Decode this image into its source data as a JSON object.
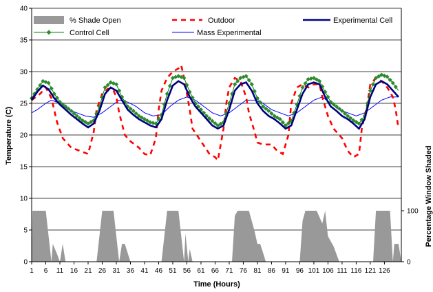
{
  "chart_data": {
    "type": "line",
    "xlabel": "Time (Hours)",
    "ylabel": "Temperature (C)",
    "y2label": "Percentage Window Shaded",
    "ylim": [
      0,
      40
    ],
    "y_ticks": [
      0,
      5,
      10,
      15,
      20,
      25,
      30,
      35,
      40
    ],
    "y2lim": [
      0,
      100
    ],
    "y2_ticks": [
      0,
      100
    ],
    "xlim": [
      1,
      132
    ],
    "x_ticks": [
      1,
      6,
      11,
      16,
      21,
      26,
      31,
      36,
      41,
      46,
      51,
      56,
      61,
      66,
      71,
      76,
      81,
      86,
      91,
      96,
      101,
      106,
      111,
      116,
      121,
      126
    ],
    "grid": "horizontal",
    "legend_position": "top",
    "colors": {
      "shade": "#999999",
      "outdoor": "#ff0000",
      "experimental": "#000080",
      "control": "#008000",
      "control_marker": "#2e8b2e",
      "mass": "#0000ff"
    },
    "legend": [
      {
        "key": "shade",
        "label": "% Shade Open"
      },
      {
        "key": "outdoor",
        "label": "Outdoor"
      },
      {
        "key": "experimental",
        "label": "Experimental Cell"
      },
      {
        "key": "control",
        "label": "Control Cell"
      },
      {
        "key": "mass",
        "label": "Mass Experimental"
      }
    ],
    "series": [
      {
        "key": "outdoor",
        "name": "Outdoor",
        "points": [
          [
            1,
            25.5
          ],
          [
            4,
            26.5
          ],
          [
            6,
            27.5
          ],
          [
            8,
            25.8
          ],
          [
            10,
            22
          ],
          [
            12,
            19.5
          ],
          [
            15,
            18
          ],
          [
            18,
            17.5
          ],
          [
            21,
            17
          ],
          [
            23,
            20.5
          ],
          [
            24,
            24
          ],
          [
            26,
            26.5
          ],
          [
            28,
            27.3
          ],
          [
            30,
            27
          ],
          [
            31,
            26
          ],
          [
            32,
            23.5
          ],
          [
            34,
            20
          ],
          [
            36,
            19
          ],
          [
            39,
            18
          ],
          [
            41,
            17
          ],
          [
            43,
            16.8
          ],
          [
            45,
            19.5
          ],
          [
            46,
            24
          ],
          [
            47,
            27
          ],
          [
            49,
            29
          ],
          [
            51,
            30
          ],
          [
            53,
            30.5
          ],
          [
            54,
            31
          ],
          [
            55,
            29
          ],
          [
            57,
            24
          ],
          [
            58,
            21
          ],
          [
            61,
            19
          ],
          [
            64,
            17
          ],
          [
            66,
            16.5
          ],
          [
            67,
            16
          ],
          [
            69,
            21
          ],
          [
            70,
            25
          ],
          [
            71,
            27.5
          ],
          [
            73,
            29
          ],
          [
            75,
            28.5
          ],
          [
            77,
            26
          ],
          [
            78,
            23.5
          ],
          [
            80,
            20.5
          ],
          [
            81,
            18.8
          ],
          [
            83,
            18.5
          ],
          [
            86,
            18.5
          ],
          [
            88,
            17.5
          ],
          [
            90,
            17
          ],
          [
            92,
            20
          ],
          [
            93,
            25
          ],
          [
            95,
            27.5
          ],
          [
            97,
            28
          ],
          [
            99,
            27.5
          ],
          [
            101,
            28
          ],
          [
            103,
            28
          ],
          [
            104,
            26
          ],
          [
            106,
            23
          ],
          [
            108,
            21
          ],
          [
            111,
            19.5
          ],
          [
            113,
            17.5
          ],
          [
            115,
            16.5
          ],
          [
            117,
            17
          ],
          [
            118,
            21
          ],
          [
            120,
            25
          ],
          [
            121,
            28
          ],
          [
            123,
            29
          ],
          [
            125,
            28.5
          ],
          [
            127,
            27.5
          ],
          [
            129,
            26
          ],
          [
            130,
            24
          ],
          [
            131,
            21
          ]
        ]
      },
      {
        "key": "mass",
        "name": "Mass Experimental",
        "points": [
          [
            1,
            23.5
          ],
          [
            3,
            24
          ],
          [
            6,
            25
          ],
          [
            8,
            25.5
          ],
          [
            11,
            25
          ],
          [
            14,
            24
          ],
          [
            17,
            23.5
          ],
          [
            20,
            23
          ],
          [
            23,
            22.8
          ],
          [
            26,
            23.5
          ],
          [
            29,
            24.5
          ],
          [
            32,
            25.5
          ],
          [
            35,
            25.2
          ],
          [
            38,
            24.5
          ],
          [
            41,
            23.5
          ],
          [
            44,
            23
          ],
          [
            47,
            23.2
          ],
          [
            50,
            24.5
          ],
          [
            53,
            25.5
          ],
          [
            56,
            26
          ],
          [
            59,
            25.5
          ],
          [
            62,
            24.5
          ],
          [
            65,
            23.5
          ],
          [
            68,
            23
          ],
          [
            71,
            23.5
          ],
          [
            74,
            24.5
          ],
          [
            77,
            25.5
          ],
          [
            80,
            25.5
          ],
          [
            83,
            25
          ],
          [
            86,
            24
          ],
          [
            89,
            23.5
          ],
          [
            92,
            23
          ],
          [
            95,
            23.5
          ],
          [
            98,
            24.5
          ],
          [
            101,
            25.5
          ],
          [
            104,
            26
          ],
          [
            107,
            25
          ],
          [
            110,
            24
          ],
          [
            113,
            23.5
          ],
          [
            116,
            23
          ],
          [
            119,
            23.5
          ],
          [
            122,
            24.5
          ],
          [
            125,
            25.5
          ],
          [
            128,
            26
          ],
          [
            131,
            26
          ]
        ]
      },
      {
        "key": "experimental",
        "name": "Experimental Cell",
        "points": [
          [
            1,
            25.5
          ],
          [
            3,
            26.8
          ],
          [
            5,
            27.8
          ],
          [
            7,
            27.2
          ],
          [
            9,
            25.8
          ],
          [
            11,
            24.8
          ],
          [
            13,
            24
          ],
          [
            15,
            23.2
          ],
          [
            17,
            22.5
          ],
          [
            19,
            21.8
          ],
          [
            21,
            21.2
          ],
          [
            23,
            21.8
          ],
          [
            25,
            23.8
          ],
          [
            27,
            26.5
          ],
          [
            29,
            27.5
          ],
          [
            31,
            27
          ],
          [
            33,
            25.5
          ],
          [
            35,
            24
          ],
          [
            37,
            23.2
          ],
          [
            39,
            22.5
          ],
          [
            41,
            22
          ],
          [
            43,
            21.5
          ],
          [
            45,
            21.2
          ],
          [
            47,
            22.5
          ],
          [
            49,
            25.5
          ],
          [
            51,
            27.8
          ],
          [
            53,
            28.5
          ],
          [
            55,
            28
          ],
          [
            57,
            26
          ],
          [
            59,
            24.5
          ],
          [
            61,
            23.5
          ],
          [
            63,
            22.5
          ],
          [
            65,
            21.5
          ],
          [
            67,
            21
          ],
          [
            69,
            21.5
          ],
          [
            71,
            24
          ],
          [
            73,
            27
          ],
          [
            75,
            28
          ],
          [
            77,
            28.3
          ],
          [
            79,
            27
          ],
          [
            81,
            25
          ],
          [
            83,
            23.8
          ],
          [
            85,
            23
          ],
          [
            87,
            22.5
          ],
          [
            89,
            21.8
          ],
          [
            91,
            21
          ],
          [
            93,
            21.5
          ],
          [
            95,
            24
          ],
          [
            97,
            26.5
          ],
          [
            99,
            28
          ],
          [
            101,
            28.3
          ],
          [
            103,
            28
          ],
          [
            105,
            26
          ],
          [
            107,
            24.5
          ],
          [
            109,
            23.8
          ],
          [
            111,
            23
          ],
          [
            113,
            22.5
          ],
          [
            115,
            21.8
          ],
          [
            117,
            21
          ],
          [
            119,
            22.5
          ],
          [
            121,
            26
          ],
          [
            123,
            28
          ],
          [
            125,
            28.5
          ],
          [
            127,
            28
          ],
          [
            129,
            27
          ],
          [
            131,
            26
          ]
        ]
      },
      {
        "key": "control",
        "name": "Control Cell",
        "points": [
          [
            1,
            25.8
          ],
          [
            3,
            27.2
          ],
          [
            5,
            28.5
          ],
          [
            7,
            28.2
          ],
          [
            9,
            26.5
          ],
          [
            11,
            25.2
          ],
          [
            13,
            24.5
          ],
          [
            15,
            23.8
          ],
          [
            17,
            23
          ],
          [
            19,
            22.3
          ],
          [
            21,
            21.8
          ],
          [
            23,
            22.3
          ],
          [
            25,
            24.5
          ],
          [
            27,
            27.5
          ],
          [
            29,
            28.3
          ],
          [
            31,
            28
          ],
          [
            33,
            26
          ],
          [
            35,
            24.5
          ],
          [
            37,
            23.8
          ],
          [
            39,
            23
          ],
          [
            41,
            22.5
          ],
          [
            43,
            22
          ],
          [
            45,
            21.8
          ],
          [
            47,
            23.2
          ],
          [
            49,
            26.5
          ],
          [
            51,
            29
          ],
          [
            53,
            29.3
          ],
          [
            55,
            29
          ],
          [
            57,
            26.8
          ],
          [
            59,
            25
          ],
          [
            61,
            24
          ],
          [
            63,
            23
          ],
          [
            65,
            22.2
          ],
          [
            67,
            21.5
          ],
          [
            69,
            22
          ],
          [
            71,
            25
          ],
          [
            73,
            28
          ],
          [
            75,
            29
          ],
          [
            77,
            29.3
          ],
          [
            79,
            28
          ],
          [
            81,
            25.8
          ],
          [
            83,
            24.5
          ],
          [
            85,
            23.8
          ],
          [
            87,
            23
          ],
          [
            89,
            22.5
          ],
          [
            91,
            21.5
          ],
          [
            93,
            22.2
          ],
          [
            95,
            24.8
          ],
          [
            97,
            27.5
          ],
          [
            99,
            28.8
          ],
          [
            101,
            29
          ],
          [
            103,
            28.5
          ],
          [
            105,
            26.8
          ],
          [
            107,
            25.2
          ],
          [
            109,
            24.5
          ],
          [
            111,
            23.8
          ],
          [
            113,
            23
          ],
          [
            115,
            22.3
          ],
          [
            117,
            21.8
          ],
          [
            119,
            23
          ],
          [
            121,
            27
          ],
          [
            123,
            29
          ],
          [
            125,
            29.5
          ],
          [
            127,
            29.2
          ],
          [
            129,
            28.2
          ],
          [
            131,
            27
          ]
        ]
      },
      {
        "key": "shade",
        "name": "% Shade Open",
        "points": [
          [
            1,
            0
          ],
          [
            1.3,
            100
          ],
          [
            6,
            100
          ],
          [
            8,
            0
          ],
          [
            8.5,
            35
          ],
          [
            10,
            15
          ],
          [
            11,
            0
          ],
          [
            12,
            35
          ],
          [
            13,
            0
          ],
          [
            24,
            0
          ],
          [
            26,
            100
          ],
          [
            30,
            100
          ],
          [
            32,
            0
          ],
          [
            33,
            35
          ],
          [
            34,
            35
          ],
          [
            36,
            0
          ],
          [
            47,
            0
          ],
          [
            49,
            100
          ],
          [
            53,
            100
          ],
          [
            55,
            0
          ],
          [
            55.5,
            55
          ],
          [
            56.5,
            0
          ],
          [
            57,
            25
          ],
          [
            58,
            0
          ],
          [
            72,
            0
          ],
          [
            73,
            90
          ],
          [
            74,
            100
          ],
          [
            78,
            100
          ],
          [
            80,
            60
          ],
          [
            81,
            35
          ],
          [
            82,
            35
          ],
          [
            84,
            0
          ],
          [
            96,
            0
          ],
          [
            97,
            80
          ],
          [
            98,
            100
          ],
          [
            102,
            100
          ],
          [
            104,
            75
          ],
          [
            105,
            100
          ],
          [
            106,
            50
          ],
          [
            108,
            30
          ],
          [
            110,
            0
          ],
          [
            122,
            0
          ],
          [
            123,
            100
          ],
          [
            128,
            100
          ],
          [
            129,
            0
          ],
          [
            129.5,
            35
          ],
          [
            131,
            35
          ],
          [
            132,
            0
          ]
        ]
      }
    ]
  }
}
